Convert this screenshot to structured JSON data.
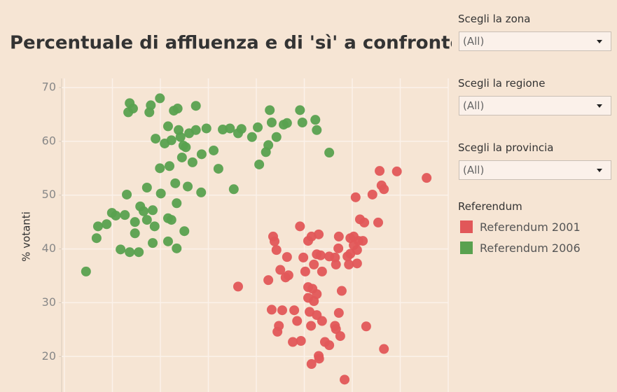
{
  "chart_data": {
    "type": "scatter",
    "title": "Percentuale di affluenza e di 'sì' a confronto",
    "ylabel": "% votanti",
    "legend_title": "Referendum",
    "xlim": [
      0,
      80
    ],
    "xticks": [
      0,
      10,
      20,
      30,
      40,
      50,
      60,
      70,
      80
    ],
    "ylim": [
      14.7,
      71.7
    ],
    "yticks": [
      20,
      30,
      40,
      50,
      60,
      70
    ],
    "grid": true,
    "series": [
      {
        "name": "Referendum 2001",
        "color": "#e15759",
        "x": [
          36.2,
          42.5,
          43.5,
          43.8,
          44.2,
          45.0,
          46.4,
          46.1,
          46.7,
          43.2,
          45.4,
          44.7,
          44.4,
          47.9,
          48.5,
          47.6,
          49.3,
          49.1,
          49.8,
          50.8,
          51.5,
          53.0,
          52.6,
          52.0,
          50.2,
          53.7,
          53.4,
          55.2,
          56.4,
          57.2,
          57.1,
          56.6,
          59.3,
          59.0,
          59.6,
          60.3,
          61.3,
          60.3,
          59.6,
          61.0,
          62.2,
          61.0,
          57.8,
          50.8,
          51.7,
          52.6,
          50.8,
          52.0,
          51.1,
          52.6,
          51.4,
          53.7,
          54.3,
          55.2,
          53.0,
          51.5,
          56.4,
          57.2,
          56.6,
          57.5,
          58.4,
          62.9,
          66.6,
          65.4,
          65.7,
          66.1,
          66.6,
          69.3,
          75.5,
          64.2,
          60.7,
          61.6,
          62.5,
          53.1
        ],
        "values": [
          33.0,
          34.2,
          42.3,
          41.4,
          39.8,
          36.1,
          38.5,
          34.7,
          35.1,
          28.7,
          28.6,
          25.7,
          24.6,
          28.6,
          26.6,
          22.7,
          22.9,
          44.2,
          38.4,
          41.5,
          42.3,
          42.7,
          39.0,
          37.1,
          35.8,
          35.8,
          38.8,
          38.6,
          38.4,
          42.3,
          40.1,
          37.1,
          37.1,
          38.6,
          42.0,
          42.3,
          41.5,
          40.7,
          39.1,
          39.8,
          41.5,
          37.3,
          32.2,
          32.9,
          32.6,
          31.6,
          30.9,
          30.3,
          28.3,
          27.7,
          25.7,
          26.6,
          22.7,
          22.1,
          20.1,
          18.6,
          25.7,
          28.1,
          25.1,
          23.8,
          15.7,
          25.6,
          21.4,
          44.9,
          54.5,
          51.8,
          51.1,
          54.4,
          53.2,
          50.1,
          49.6,
          45.5,
          44.9,
          19.6
        ]
      },
      {
        "name": "Referendum 2006",
        "color": "#59a14f",
        "x": [
          4.5,
          6.7,
          7.0,
          8.8,
          9.9,
          10.7,
          12.6,
          13.0,
          11.7,
          13.6,
          15.5,
          14.7,
          14.7,
          15.8,
          17.2,
          16.5,
          17.2,
          18.4,
          18.4,
          18.8,
          20.1,
          21.6,
          22.3,
          21.6,
          23.4,
          23.4,
          25.0,
          25.7,
          28.5,
          13.6,
          13.3,
          14.3,
          17.7,
          18.0,
          19.9,
          22.8,
          23.6,
          27.4,
          19.0,
          20.9,
          22.3,
          23.8,
          24.8,
          26.0,
          27.4,
          29.6,
          31.1,
          33.0,
          34.5,
          36.9,
          39.1,
          40.3,
          42.8,
          43.2,
          44.2,
          45.7,
          46.4,
          49.1,
          49.6,
          52.3,
          52.6,
          55.2,
          36.2,
          32.1,
          35.3,
          42.0,
          42.5,
          40.6,
          28.6,
          26.7,
          24.5,
          23.1,
          21.9,
          19.9,
          25.3,
          21.6,
          24.2
        ],
        "values": [
          35.8,
          42.0,
          44.2,
          44.6,
          46.7,
          46.2,
          46.3,
          50.1,
          39.9,
          39.4,
          39.4,
          45.0,
          42.9,
          47.9,
          51.4,
          47.0,
          45.4,
          47.2,
          41.1,
          44.2,
          50.3,
          45.7,
          45.4,
          41.4,
          40.1,
          48.5,
          43.3,
          51.6,
          50.5,
          67.1,
          65.4,
          66.1,
          65.4,
          66.7,
          68.0,
          65.7,
          66.1,
          66.6,
          60.5,
          59.6,
          60.2,
          62.1,
          59.2,
          61.5,
          62.1,
          62.4,
          58.3,
          62.2,
          62.4,
          62.3,
          60.8,
          62.6,
          65.8,
          63.5,
          60.8,
          63.1,
          63.4,
          65.8,
          63.5,
          64.0,
          62.1,
          57.9,
          61.5,
          54.9,
          51.1,
          58.0,
          59.3,
          55.7,
          57.6,
          56.1,
          57.0,
          52.2,
          55.4,
          55.0,
          58.9,
          62.8,
          60.8
        ]
      }
    ]
  },
  "filters": [
    {
      "label": "Scegli la zona",
      "value": "(All)"
    },
    {
      "label": "Scegli la regione",
      "value": "(All)"
    },
    {
      "label": "Scegli la provincia",
      "value": "(All)"
    }
  ]
}
